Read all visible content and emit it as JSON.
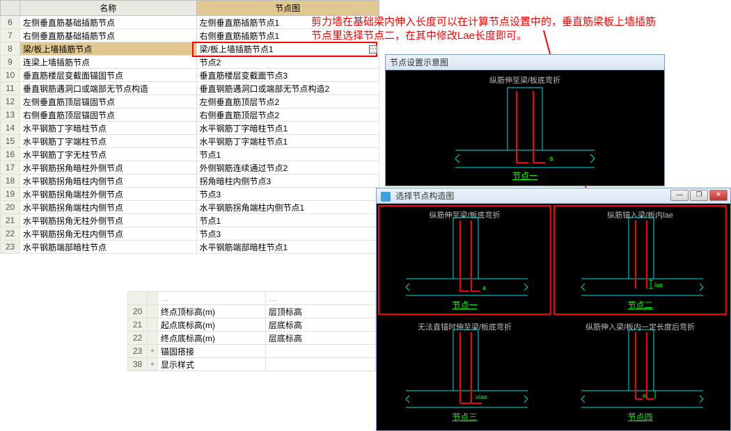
{
  "columns": {
    "name": "名称",
    "diagram": "节点图"
  },
  "rows": [
    {
      "n": 6,
      "name": "左侧垂直筋基础插筋节点",
      "val": "左侧垂直筋插筋节点1"
    },
    {
      "n": 7,
      "name": "右侧垂直筋基础插筋节点",
      "val": "右侧垂直筋插筋节点1"
    },
    {
      "n": 8,
      "name": "梁/板上墙插筋节点",
      "val": "梁/板上墙插筋节点1",
      "hl": true
    },
    {
      "n": 9,
      "name": "连梁上墙插筋节点",
      "val": "节点2"
    },
    {
      "n": 10,
      "name": "垂直筋楼层变截面锚固节点",
      "val": "垂直筋楼层变截面节点3"
    },
    {
      "n": 11,
      "name": "垂直钢筋遇洞口或端部无节点构造",
      "val": "垂直钢筋遇洞口或端部无节点构造2"
    },
    {
      "n": 12,
      "name": "左侧垂直筋顶层锚固节点",
      "val": "左侧垂直筋顶层节点2"
    },
    {
      "n": 13,
      "name": "右侧垂直筋顶层锚固节点",
      "val": "右侧垂直筋顶层节点2"
    },
    {
      "n": 14,
      "name": "水平钢筋丁字暗柱节点",
      "val": "水平钢筋丁字暗柱节点1"
    },
    {
      "n": 15,
      "name": "水平钢筋丁字端柱节点",
      "val": "水平钢筋丁字端柱节点1"
    },
    {
      "n": 16,
      "name": "水平钢筋丁字无柱节点",
      "val": "节点1"
    },
    {
      "n": 17,
      "name": "水平钢筋拐角暗柱外侧节点",
      "val": "外侧钢筋连续通过节点2"
    },
    {
      "n": 18,
      "name": "水平钢筋拐角暗柱内侧节点",
      "val": "拐角暗柱内侧节点3"
    },
    {
      "n": 19,
      "name": "水平钢筋拐角端柱外侧节点",
      "val": "节点3"
    },
    {
      "n": 20,
      "name": "水平钢筋拐角端柱内侧节点",
      "val": "水平钢筋拐角端柱内侧节点1"
    },
    {
      "n": 21,
      "name": "水平钢筋拐角无柱外侧节点",
      "val": "节点1"
    },
    {
      "n": 22,
      "name": "水平钢筋拐角无柱内侧节点",
      "val": "节点3"
    },
    {
      "n": 23,
      "name": "水平钢筋端部暗柱节点",
      "val": "水平钢筋端部暗柱节点1"
    }
  ],
  "sec_rows": [
    {
      "n": "",
      "name": "…",
      "val": "…",
      "cut": true
    },
    {
      "n": 20,
      "name": "终点顶标高(m)",
      "val": "层顶标高"
    },
    {
      "n": 21,
      "name": "起点底标高(m)",
      "val": "层底标高"
    },
    {
      "n": 22,
      "name": "终点底标高(m)",
      "val": "层底标高"
    },
    {
      "n": 23,
      "exp": "+",
      "name": "锚固搭接",
      "val": ""
    },
    {
      "n": 38,
      "exp": "+",
      "name": "显示样式",
      "val": ""
    }
  ],
  "annotation": "剪力墙在基础梁内伸入长度可以在计算节点设置中的，垂直筋梁板上墙插筋\n节点里选择节点二，在其中修改Lae长度即可。",
  "preview": {
    "title": "节点设置示意图",
    "top": "纵筋伸至梁/板底弯折",
    "label": "节点一"
  },
  "dialog": {
    "title": "选择节点构造图",
    "cells": [
      {
        "top": "纵筋伸至梁/板底弯折",
        "label": "节点一",
        "sel": true
      },
      {
        "top": "纵筋锚入梁/板内lae",
        "label": "节点二",
        "sel": true
      },
      {
        "top": "无法直锚时伸至梁/板底弯折",
        "label": "节点三"
      },
      {
        "top": "纵筋伸入梁/板内一定长度后弯折",
        "label": "节点四"
      }
    ]
  },
  "colors": {
    "hl_row": "#e0c890",
    "red": "#ff0000",
    "green": "#00ff00",
    "cyan": "#00e0e0",
    "grid": "#e0e0d8"
  }
}
